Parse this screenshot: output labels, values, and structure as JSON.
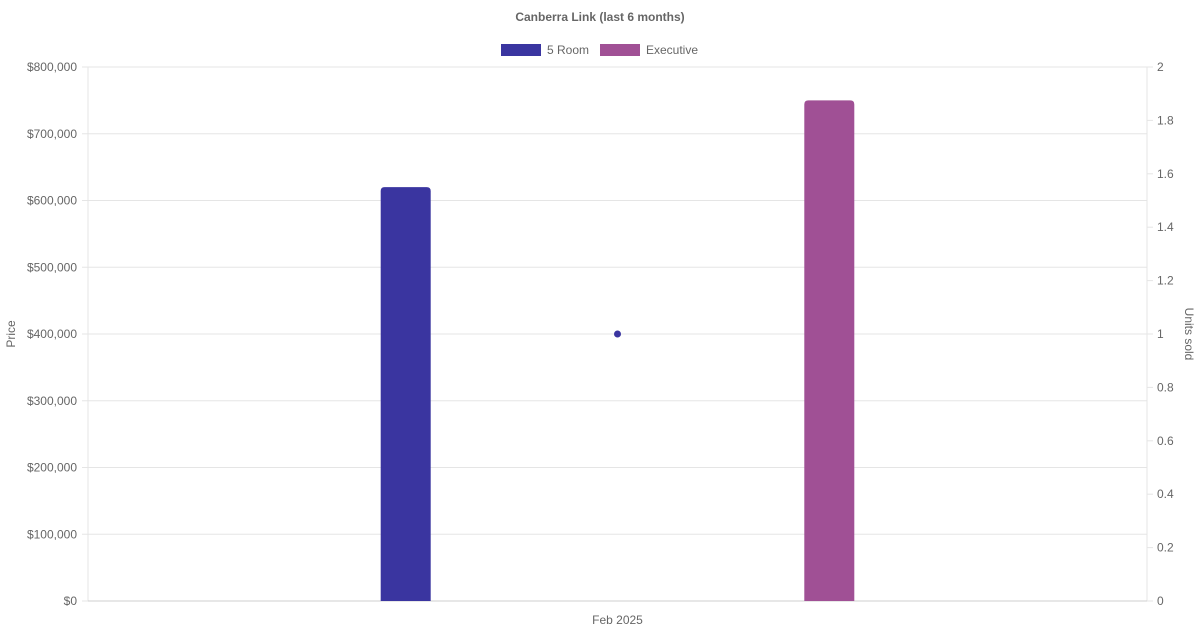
{
  "chart_data": {
    "type": "bar",
    "title": "Canberra Link (last 6 months)",
    "categories": [
      "Feb 2025"
    ],
    "series": [
      {
        "name": "5 Room",
        "type": "bar",
        "axis": "left",
        "values": [
          620000
        ],
        "color": "#3a35a0"
      },
      {
        "name": "Executive",
        "type": "bar",
        "axis": "left",
        "values": [
          750000
        ],
        "color": "#a05095"
      },
      {
        "name": "",
        "type": "scatter",
        "axis": "right",
        "values": [
          1
        ],
        "color": "#3a35a0"
      }
    ],
    "y_left": {
      "label": "Price",
      "range": [
        0,
        800000
      ],
      "ticks": [
        "$0",
        "$100,000",
        "$200,000",
        "$300,000",
        "$400,000",
        "$500,000",
        "$600,000",
        "$700,000",
        "$800,000"
      ]
    },
    "y_right": {
      "label": "Units sold",
      "range": [
        0,
        2
      ],
      "ticks": [
        "0",
        "0.2",
        "0.4",
        "0.6",
        "0.8",
        "1",
        "1.2",
        "1.4",
        "1.6",
        "1.8",
        "2"
      ]
    },
    "grid": true,
    "legend": "top"
  }
}
